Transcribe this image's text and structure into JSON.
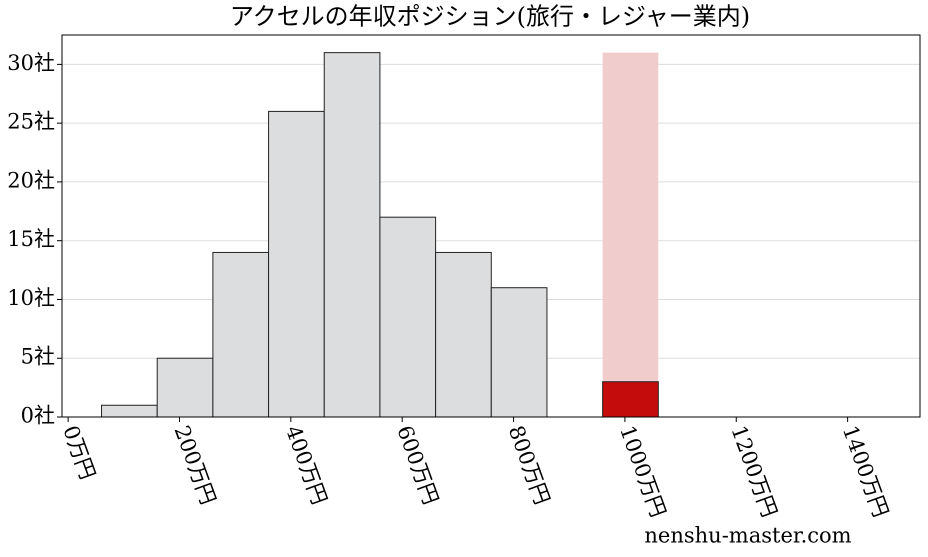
{
  "chart_data": {
    "type": "histogram",
    "title": "アクセルの年収ポジション(旅行・レジャー業内)",
    "bins": [
      60,
      160,
      260,
      360,
      460,
      560,
      660,
      760,
      860
    ],
    "values": [
      1,
      5,
      14,
      26,
      31,
      17,
      14,
      11
    ],
    "color": "#dcdddf",
    "highlight": {
      "bins": [
        960,
        1060
      ],
      "value": 3,
      "color": "#c40c0c",
      "band_color": "#f0cccc"
    },
    "xlim": [
      -11,
      1530
    ],
    "ylim": [
      0,
      32.5
    ],
    "xticks": [
      {
        "value": 0,
        "label": "0万円"
      },
      {
        "value": 200,
        "label": "200万円"
      },
      {
        "value": 400,
        "label": "400万円"
      },
      {
        "value": 600,
        "label": "600万円"
      },
      {
        "value": 800,
        "label": "800万円"
      },
      {
        "value": 1000,
        "label": "1000万円"
      },
      {
        "value": 1200,
        "label": "1200万円"
      },
      {
        "value": 1400,
        "label": "1400万円"
      }
    ],
    "yticks": [
      {
        "value": 0,
        "label": "0社"
      },
      {
        "value": 5,
        "label": "5社"
      },
      {
        "value": 10,
        "label": "10社"
      },
      {
        "value": 15,
        "label": "15社"
      },
      {
        "value": 20,
        "label": "20社"
      },
      {
        "value": 25,
        "label": "25社"
      },
      {
        "value": 30,
        "label": "30社"
      }
    ],
    "grid": true,
    "watermark": "nenshu-master.com"
  }
}
